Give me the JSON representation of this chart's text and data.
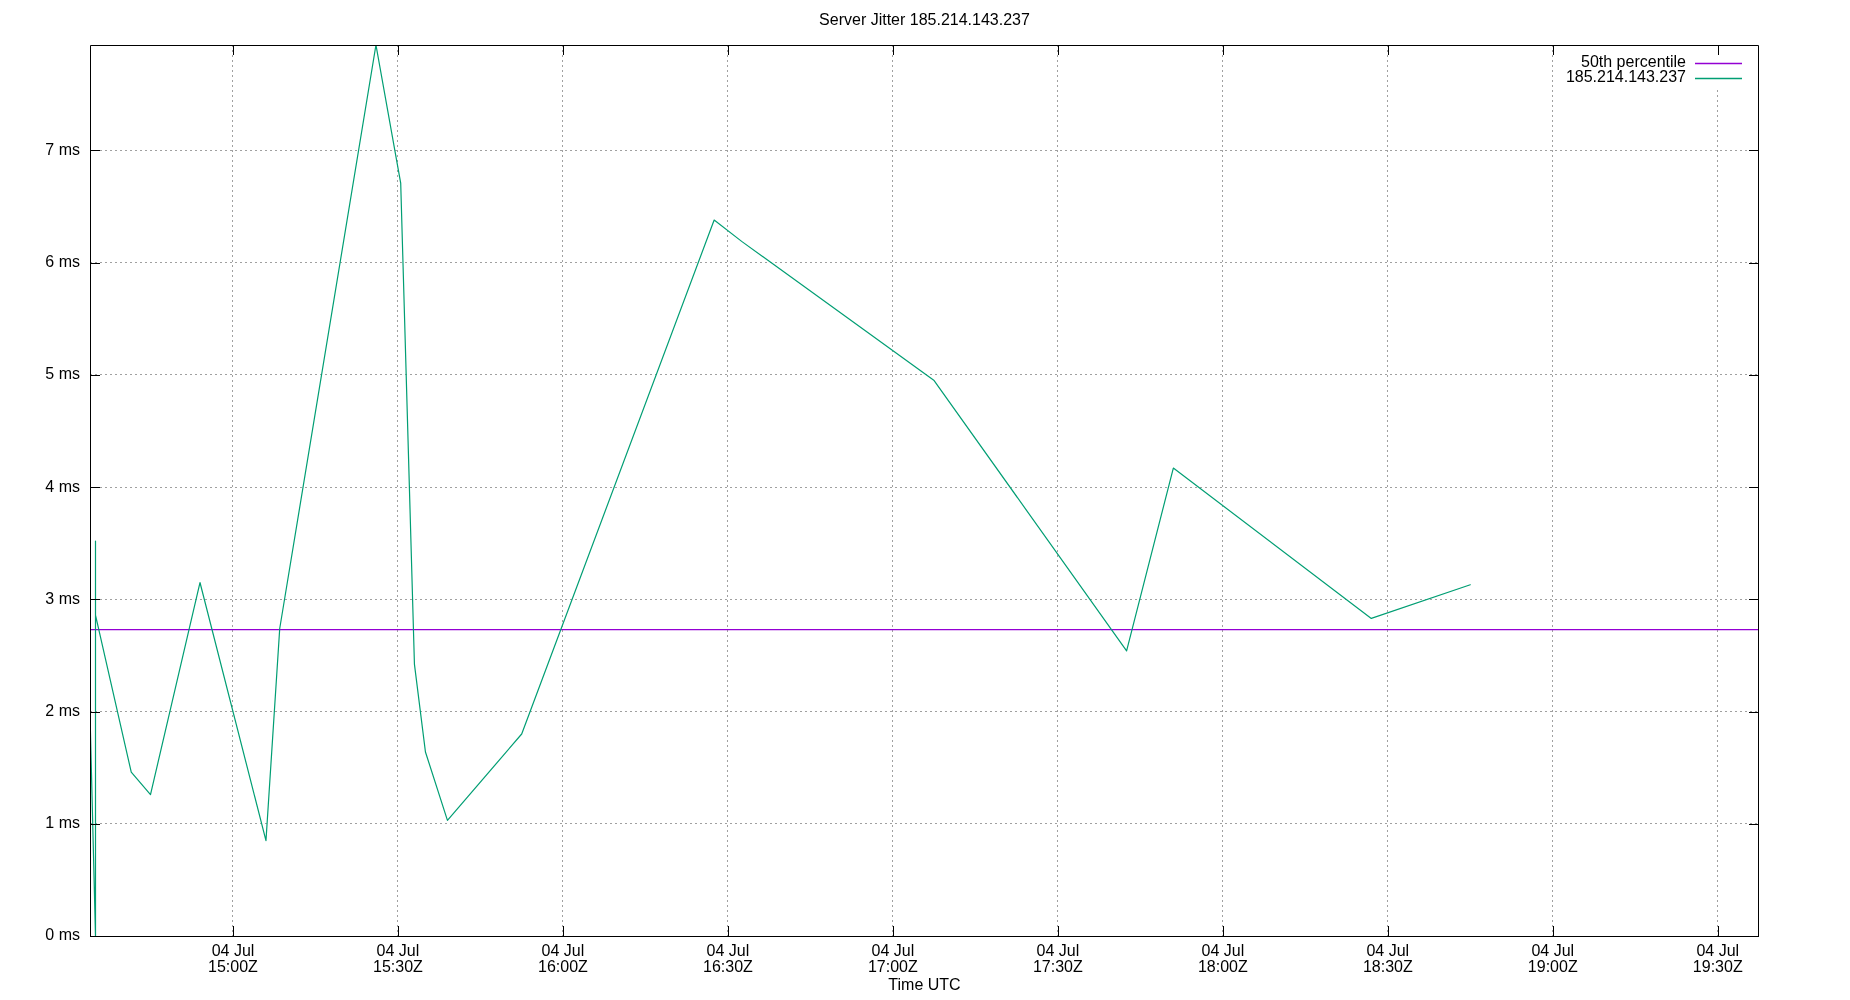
{
  "chart_data": {
    "type": "line",
    "title": "Server Jitter 185.214.143.237",
    "xlabel": "Time UTC",
    "x": [
      "--07-04T14:34",
      "--07-04T14:35",
      "--07-04T14:35",
      "--07-04T14:35",
      "--07-04T14:41:30",
      "--07-04T14:45",
      "--07-04T14:54",
      "--07-04T15:06",
      "--07-04T15:08:30",
      "--07-04T15:26",
      "--07-04T15:30:30",
      "--07-04T15:33",
      "--07-04T15:35",
      "--07-04T15:39",
      "--07-04T15:52:30",
      "--07-04T16:27:30",
      "--07-04T16:32:30",
      "--07-04T17:07:30",
      "--07-04T17:42:30",
      "--07-04T17:51",
      "--07-04T18:27",
      "--07-04T18:45"
    ],
    "series": [
      {
        "name": "185.214.143.237",
        "color": "#009e73",
        "values": [
          1.98,
          0,
          3.52,
          2.86,
          1.46,
          1.26,
          3.15,
          0.85,
          2.74,
          7.94,
          6.71,
          2.42,
          1.64,
          1.03,
          1.8,
          6.38,
          6.19,
          4.95,
          2.54,
          4.17,
          2.83,
          3.13
        ]
      }
    ],
    "ref_lines": [
      {
        "axis": "y",
        "value": 2.73,
        "label": "50th percentile",
        "color": "#9400d3"
      }
    ],
    "xlim": [
      "--07-04T14:34",
      "--07-04T19:37:30"
    ],
    "xticks": [
      {
        "value": "--07-04T15:00",
        "label": "04 Jul\n15:00Z"
      },
      {
        "value": "--07-04T15:30",
        "label": "04 Jul\n15:30Z"
      },
      {
        "value": "--07-04T16:00",
        "label": "04 Jul\n16:00Z"
      },
      {
        "value": "--07-04T16:30",
        "label": "04 Jul\n16:30Z"
      },
      {
        "value": "--07-04T17:00",
        "label": "04 Jul\n17:00Z"
      },
      {
        "value": "--07-04T17:30",
        "label": "04 Jul\n17:30Z"
      },
      {
        "value": "--07-04T18:00",
        "label": "04 Jul\n18:00Z"
      },
      {
        "value": "--07-04T18:30",
        "label": "04 Jul\n18:30Z"
      },
      {
        "value": "--07-04T19:00",
        "label": "04 Jul\n19:00Z"
      },
      {
        "value": "--07-04T19:30",
        "label": "04 Jul\n19:30Z"
      }
    ],
    "ylim": [
      0,
      7.94
    ],
    "yticks": [
      {
        "value": 0,
        "label": "0 ms"
      },
      {
        "value": 1,
        "label": "1 ms"
      },
      {
        "value": 2,
        "label": "2 ms"
      },
      {
        "value": 3,
        "label": "3 ms"
      },
      {
        "value": 4,
        "label": "4 ms"
      },
      {
        "value": 5,
        "label": "5 ms"
      },
      {
        "value": 6,
        "label": "6 ms"
      },
      {
        "value": 7,
        "label": "7 ms"
      }
    ],
    "grid": true,
    "legend": "top right",
    "marker": "none"
  }
}
